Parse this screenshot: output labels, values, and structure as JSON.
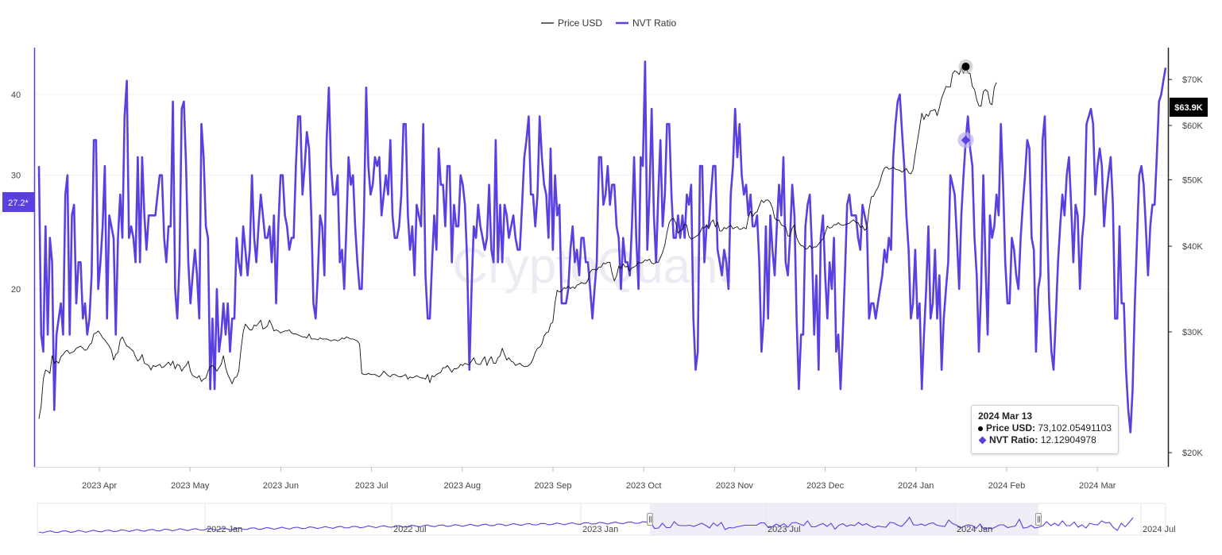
{
  "watermark": "CryptoQuant",
  "legend": [
    {
      "name": "Price USD",
      "color": "#333333"
    },
    {
      "name": "NVT Ratio",
      "color": "#5b3fe0"
    }
  ],
  "tooltip": {
    "date": "2024 Mar 13",
    "price_label": "Price USD",
    "price_value": "73,102.05491103",
    "nvt_label": "NVT Ratio",
    "nvt_value": "12.12904978"
  },
  "left_axis_marker": "27.2*",
  "right_axis_marker": "$63.9K",
  "navigator": {
    "labels": [
      "2022 Jan",
      "2022 Jul",
      "2023 Jan",
      "2023 Jul",
      "2024 Jan",
      "2024 Jul"
    ]
  },
  "colors": {
    "nvt": "#5b3fe0",
    "price": "#222222",
    "accent": "#5b3fe0"
  },
  "chart_data": {
    "type": "line",
    "x_labels": [
      "2023 Apr",
      "2023 May",
      "2023 Jun",
      "2023 Jul",
      "2023 Aug",
      "2023 Sep",
      "2023 Oct",
      "2023 Nov",
      "2023 Dec",
      "2024 Jan",
      "2024 Feb",
      "2024 Mar"
    ],
    "left_axis": {
      "ticks": [
        "20",
        "30",
        "40"
      ],
      "log": true
    },
    "right_axis": {
      "ticks": [
        "$20K",
        "$30K",
        "$40K",
        "$50K",
        "$60K",
        "$70K"
      ],
      "log": true
    },
    "series": [
      {
        "name": "NVT Ratio",
        "axis": "left",
        "values": [
          31,
          17,
          16,
          25,
          17,
          24,
          22,
          13,
          17,
          18,
          19,
          17,
          28,
          30,
          17,
          26,
          27,
          19,
          22,
          22,
          18,
          19,
          17,
          18,
          21,
          34,
          34,
          20,
          22,
          25,
          31,
          18,
          26,
          25,
          24,
          17,
          24,
          28,
          24,
          37,
          42,
          24,
          25,
          24,
          22,
          32,
          22,
          32,
          26,
          23,
          26,
          26,
          26,
          26,
          28,
          30,
          30,
          24,
          22,
          25,
          25,
          39,
          20,
          18,
          22,
          38,
          39,
          31,
          22,
          19,
          21,
          23,
          21,
          18,
          36,
          32,
          25,
          24,
          14,
          18,
          14,
          20,
          16,
          17,
          19,
          17,
          19,
          16,
          18,
          18,
          24,
          22,
          21,
          25,
          23,
          21,
          23,
          30,
          24,
          22,
          25,
          28,
          26,
          24,
          24,
          25,
          22,
          26,
          19,
          25,
          30,
          30,
          26,
          25,
          23,
          24,
          24,
          31,
          37,
          37,
          28,
          31,
          35,
          33,
          26,
          19,
          18,
          21,
          26,
          25,
          21,
          34,
          41,
          31,
          28,
          28,
          30,
          22,
          23,
          20,
          25,
          32,
          29,
          30,
          25,
          22,
          20,
          20,
          26,
          41,
          31,
          28,
          29,
          32,
          31,
          32,
          26,
          28,
          30,
          28,
          34,
          26,
          24,
          24,
          25,
          28,
          36,
          36,
          26,
          23,
          25,
          21,
          27,
          26,
          25,
          36,
          21,
          18,
          18,
          22,
          26,
          23,
          33,
          29,
          29,
          25,
          31,
          31,
          22,
          27,
          25,
          25,
          30,
          29,
          27,
          22,
          15,
          20,
          25,
          24,
          27,
          25,
          24,
          23,
          24,
          29,
          23,
          22,
          34,
          22,
          27,
          22,
          27,
          26,
          24,
          25,
          26,
          24,
          23,
          23,
          27,
          32,
          34,
          37,
          28,
          28,
          25,
          28,
          37,
          32,
          29,
          28,
          24,
          33,
          23,
          30,
          26,
          27,
          19,
          19,
          19,
          20,
          23,
          25,
          22,
          23,
          21,
          24,
          24,
          22,
          22,
          20,
          18,
          20,
          22,
          32,
          32,
          27,
          28,
          31,
          27,
          29,
          29,
          25,
          24,
          20,
          24,
          22,
          22,
          21,
          25,
          32,
          24,
          20,
          32,
          31,
          45,
          23,
          28,
          38,
          26,
          22,
          28,
          34,
          25,
          28,
          36,
          36,
          28,
          24,
          24,
          26,
          24,
          26,
          24,
          28,
          27,
          29,
          18,
          15,
          16,
          31,
          31,
          22,
          25,
          25,
          28,
          31,
          31,
          23,
          22,
          21,
          23,
          22,
          20,
          28,
          31,
          38,
          32,
          36,
          30,
          28,
          29,
          26,
          28,
          25,
          25,
          26,
          22,
          16,
          18,
          25,
          18,
          26,
          23,
          21,
          25,
          29,
          26,
          32,
          22,
          21,
          24,
          29,
          26,
          18,
          14,
          17,
          17,
          25,
          27,
          28,
          23,
          17,
          21,
          15,
          24,
          26,
          21,
          18,
          22,
          20,
          24,
          16,
          17,
          14,
          17,
          21,
          27,
          28,
          26,
          26,
          26,
          24,
          23,
          27,
          26,
          25,
          18,
          19,
          19,
          18,
          19,
          20,
          21,
          23,
          22,
          24,
          23,
          32,
          36,
          39,
          40,
          35,
          31,
          26,
          23,
          18,
          19,
          23,
          18,
          19,
          14,
          17,
          20,
          25,
          18,
          19,
          23,
          18,
          21,
          15,
          18,
          20,
          22,
          30,
          29,
          28,
          24,
          20,
          26,
          30,
          34,
          37,
          33,
          31,
          24,
          21,
          16,
          20,
          30,
          22,
          17,
          26,
          24,
          25,
          28,
          26,
          36,
          29,
          22,
          19,
          19,
          24,
          23,
          21,
          20,
          24,
          27,
          30,
          34,
          33,
          24,
          23,
          16,
          20,
          21,
          34,
          37,
          26,
          19,
          16,
          15,
          18,
          22,
          25,
          28,
          26,
          30,
          32,
          27,
          22,
          27,
          26,
          20,
          24,
          26,
          36,
          37,
          38,
          36,
          28,
          31,
          33,
          31,
          25,
          28,
          30,
          32,
          27,
          18,
          18,
          25,
          19,
          19,
          15,
          13,
          12,
          14,
          19,
          24,
          30,
          31,
          29,
          25,
          21,
          25,
          27,
          27,
          32,
          39,
          40,
          42,
          44
        ]
      },
      {
        "name": "Price USD",
        "axis": "right",
        "values": [
          22400,
          23400,
          25600,
          26400,
          26300,
          26100,
          27700,
          27000,
          27200,
          27000,
          27600,
          27800,
          28100,
          28200,
          27900,
          28000,
          28100,
          28400,
          28500,
          28600,
          28400,
          28200,
          28300,
          28700,
          28900,
          29800,
          29900,
          30100,
          29800,
          29400,
          29200,
          28900,
          28600,
          28200,
          27300,
          27800,
          28000,
          29200,
          29500,
          29000,
          28600,
          28500,
          28300,
          28100,
          27600,
          27200,
          27400,
          27800,
          27000,
          26900,
          26800,
          26400,
          26800,
          26700,
          26800,
          26900,
          26600,
          26700,
          26900,
          27100,
          26800,
          27200,
          26500,
          26900,
          26800,
          26300,
          26600,
          26800,
          27200,
          26300,
          25900,
          25800,
          25700,
          25900,
          25400,
          25600,
          25700,
          26300,
          26700,
          26800,
          26600,
          26300,
          26600,
          26900,
          27700,
          26600,
          26000,
          25600,
          25200,
          25700,
          25800,
          26300,
          28300,
          30000,
          30800,
          30500,
          30200,
          30200,
          30700,
          30600,
          30900,
          31200,
          30300,
          30400,
          30600,
          31200,
          30700,
          30100,
          30200,
          30100,
          29900,
          30000,
          30100,
          30100,
          30200,
          29900,
          29800,
          29800,
          29700,
          29600,
          29500,
          29500,
          29400,
          29800,
          29300,
          29300,
          29300,
          29200,
          29400,
          29300,
          29300,
          29300,
          29200,
          29100,
          29200,
          29200,
          29100,
          29200,
          29400,
          29300,
          29500,
          29400,
          29300,
          29300,
          29200,
          29100,
          28800,
          26100,
          26000,
          26000,
          26100,
          26000,
          26000,
          26000,
          25900,
          25800,
          26000,
          26300,
          26100,
          25900,
          25800,
          26000,
          26000,
          25900,
          25800,
          25800,
          25900,
          26000,
          25600,
          25800,
          25700,
          25800,
          25900,
          25800,
          25700,
          25700,
          25600,
          26000,
          25300,
          25900,
          25800,
          26000,
          26100,
          26200,
          26600,
          26600,
          26800,
          26500,
          26200,
          26500,
          26500,
          26600,
          26900,
          26800,
          27000,
          26900,
          26900,
          27200,
          27500,
          27000,
          26900,
          26900,
          27300,
          27600,
          26800,
          27300,
          27600,
          27000,
          27000,
          27500,
          27700,
          28400,
          27800,
          27300,
          27500,
          27200,
          27100,
          26800,
          26900,
          27000,
          26800,
          26700,
          26700,
          26800,
          27000,
          27400,
          28000,
          28400,
          28500,
          28800,
          29600,
          29900,
          30000,
          30800,
          31000,
          33100,
          34500,
          34300,
          34400,
          34800,
          34700,
          35000,
          34700,
          34900,
          34700,
          35100,
          35200,
          35400,
          35300,
          35300,
          35700,
          36700,
          37000,
          37000,
          36900,
          37300,
          37300,
          37800,
          37700,
          37900,
          37900,
          36500,
          35600,
          36200,
          37400,
          37100,
          37700,
          37300,
          37400,
          36800,
          37200,
          37300,
          37500,
          37900,
          37800,
          37900,
          38200,
          38100,
          38300,
          37800,
          37700,
          37900,
          37900,
          38500,
          39200,
          40200,
          41900,
          43300,
          43800,
          43900,
          43200,
          41800,
          42100,
          42300,
          43100,
          42900,
          41300,
          41000,
          41100,
          41300,
          41500,
          41900,
          42600,
          42500,
          43000,
          42400,
          43300,
          43700,
          42700,
          43400,
          42100,
          42100,
          42600,
          42400,
          42700,
          42900,
          42400,
          42600,
          42700,
          42300,
          42400,
          42600,
          42400,
          44000,
          45000,
          44200,
          44700,
          44900,
          45800,
          46700,
          46300,
          46700,
          46700,
          46300,
          45500,
          44000,
          43600,
          43700,
          43000,
          42800,
          42700,
          41400,
          41400,
          42500,
          43000,
          41200,
          40500,
          40100,
          40000,
          39600,
          39700,
          40100,
          39700,
          39900,
          39900,
          40300,
          40700,
          41000,
          41800,
          42800,
          42500,
          42600,
          43000,
          43000,
          43300,
          43000,
          42900,
          43000,
          43100,
          43200,
          43500,
          43700,
          43300,
          43300,
          42600,
          42800,
          42200,
          42500,
          45300,
          47200,
          47300,
          48100,
          48700,
          49700,
          51100,
          52000,
          52200,
          51800,
          51900,
          52200,
          51800,
          51700,
          51600,
          51300,
          51600,
          51900,
          51200,
          51000,
          51700,
          54500,
          57000,
          59600,
          62500,
          61200,
          62300,
          61900,
          63000,
          63100,
          63300,
          62000,
          63700,
          65800,
          67000,
          68400,
          68300,
          68300,
          71400,
          72100,
          71800,
          71200,
          72800,
          71400,
          73102,
          71600,
          71400,
          68400,
          67700,
          65400,
          64100,
          64000,
          67200,
          67700,
          67200,
          64700,
          64300,
          68200,
          69300
        ]
      }
    ]
  }
}
